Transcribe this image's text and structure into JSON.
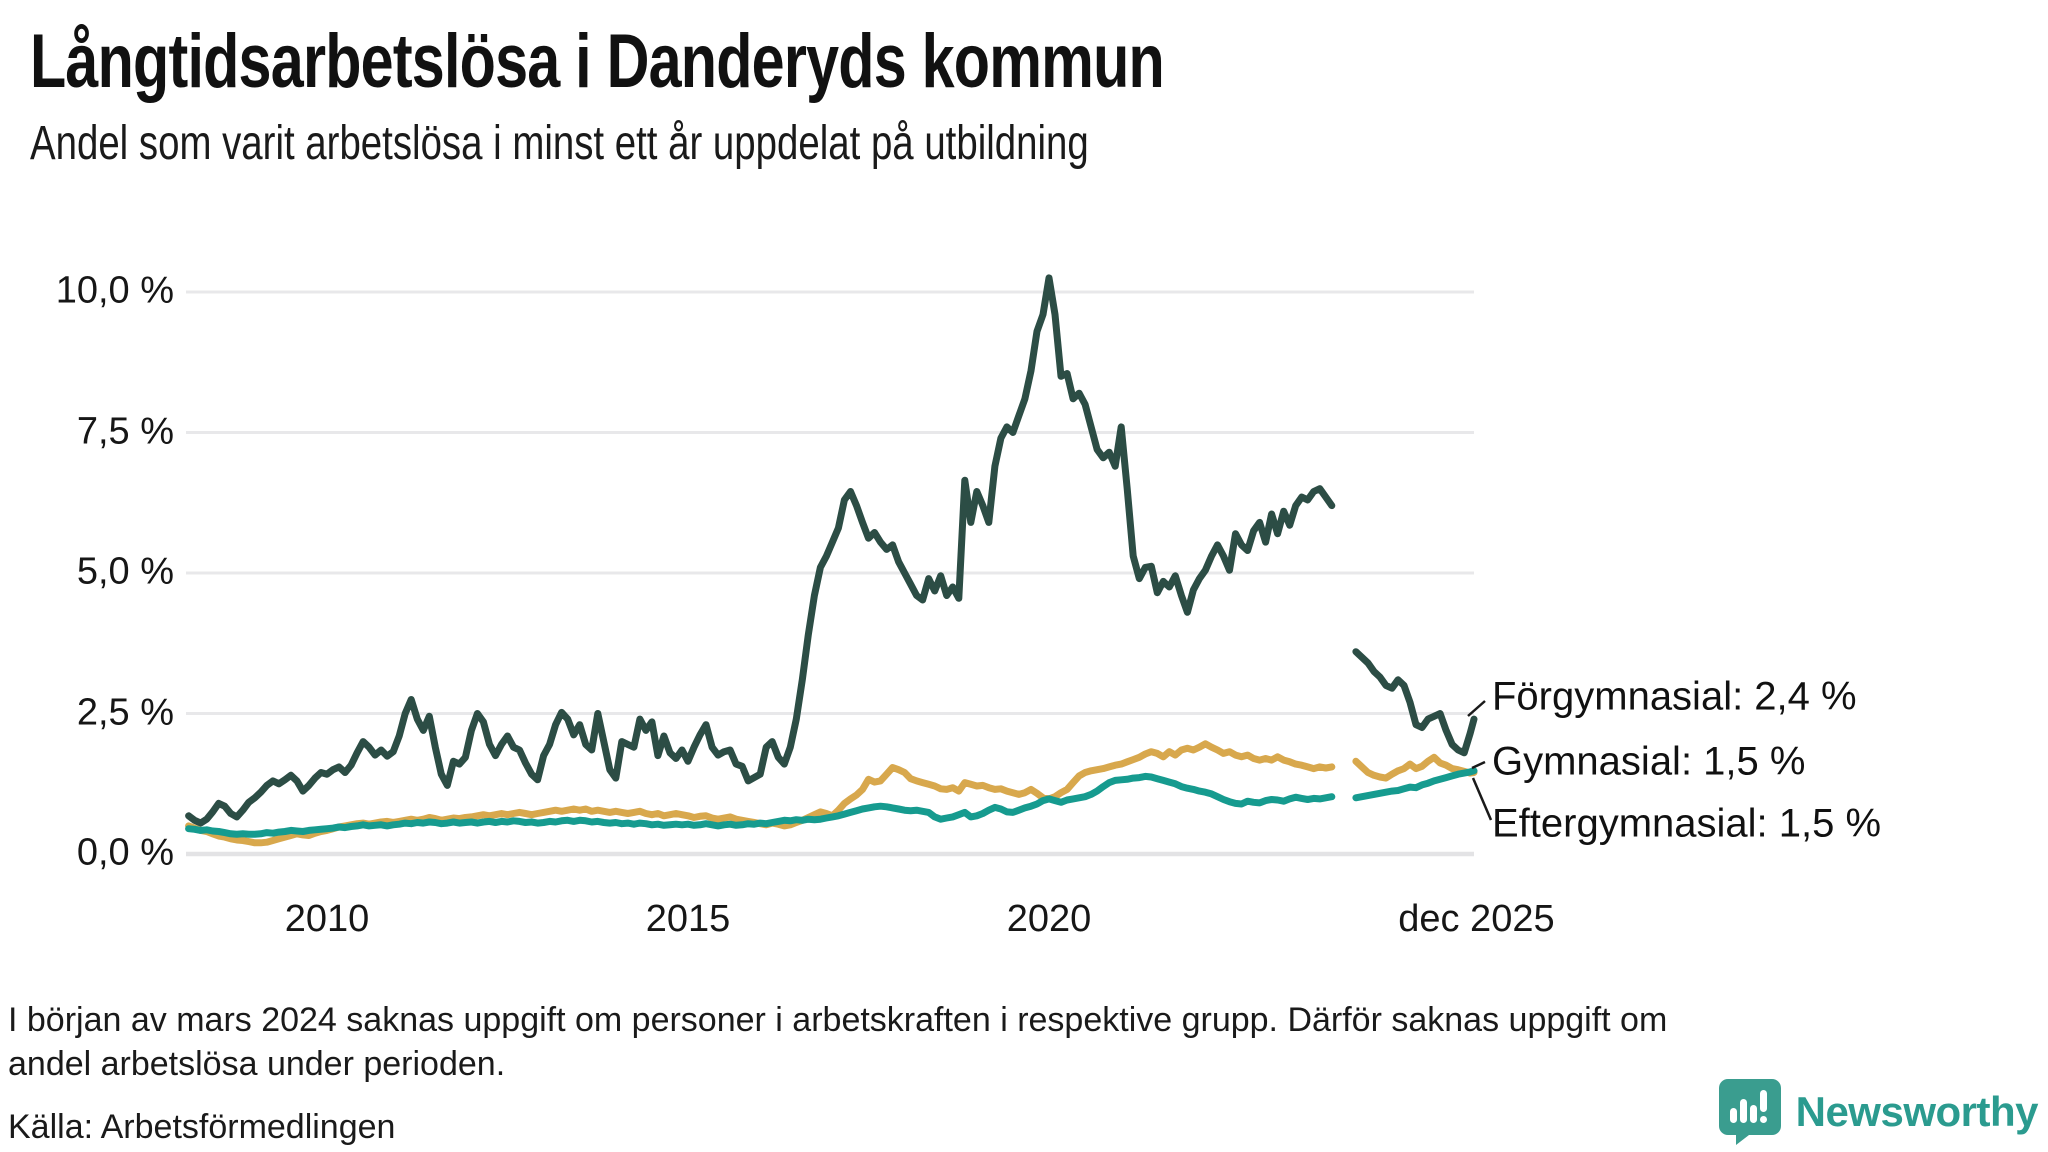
{
  "header": {
    "title": "Långtidsarbetslösa i Danderyds kommun",
    "subtitle": "Andel som varit arbetslösa i minst ett år uppdelat på utbildning"
  },
  "chart_data": {
    "type": "line",
    "title": "Långtidsarbetslösa i Danderyds kommun",
    "subtitle": "Andel som varit arbetslösa i minst ett år uppdelat på utbildning",
    "unit": "%",
    "grid": true,
    "x_axis": {
      "start_year": 2008,
      "start_month": 2,
      "freq": "monthly",
      "ticks": [
        {
          "label": "2010",
          "year": 2010
        },
        {
          "label": "2015",
          "year": 2015
        },
        {
          "label": "2020",
          "year": 2020
        },
        {
          "label": "dec 2025",
          "year": 2025.92
        }
      ]
    },
    "y_axis": {
      "min": 0,
      "max": 10,
      "tick_values": [
        10,
        7.5,
        5,
        2.5,
        0
      ],
      "tick_labels": [
        "10,0 %",
        "7,5 %",
        "5,0 %",
        "2,5 %",
        "0,0 %"
      ]
    },
    "gap": {
      "missing_months": [
        "2024-01",
        "2024-02",
        "2024-03"
      ]
    },
    "annotations": [
      "Förgymnasial: 2,4 %",
      "Gymnasial: 1,5 %",
      "Eftergymnasial: 1,5 %"
    ],
    "series": [
      {
        "name": "Förgymnasial",
        "color": "#2c4d45",
        "end_value_label": "2,4 %",
        "values": [
          0.68,
          0.6,
          0.55,
          0.62,
          0.75,
          0.9,
          0.85,
          0.72,
          0.66,
          0.78,
          0.92,
          1.0,
          1.1,
          1.22,
          1.3,
          1.25,
          1.32,
          1.4,
          1.3,
          1.12,
          1.22,
          1.35,
          1.45,
          1.42,
          1.5,
          1.55,
          1.45,
          1.58,
          1.8,
          2.0,
          1.9,
          1.76,
          1.85,
          1.74,
          1.82,
          2.1,
          2.5,
          2.75,
          2.4,
          2.2,
          2.45,
          1.9,
          1.42,
          1.22,
          1.65,
          1.6,
          1.72,
          2.2,
          2.5,
          2.35,
          1.95,
          1.75,
          1.95,
          2.1,
          1.9,
          1.85,
          1.62,
          1.42,
          1.32,
          1.75,
          1.95,
          2.3,
          2.52,
          2.4,
          2.12,
          2.3,
          1.95,
          1.85,
          2.5,
          2.0,
          1.5,
          1.35,
          2.0,
          1.95,
          1.9,
          2.4,
          2.2,
          2.35,
          1.75,
          2.1,
          1.8,
          1.7,
          1.85,
          1.65,
          1.9,
          2.12,
          2.3,
          1.9,
          1.76,
          1.82,
          1.85,
          1.6,
          1.56,
          1.3,
          1.36,
          1.42,
          1.9,
          2.0,
          1.72,
          1.6,
          1.9,
          2.4,
          3.1,
          3.9,
          4.6,
          5.1,
          5.3,
          5.55,
          5.8,
          6.3,
          6.45,
          6.2,
          5.9,
          5.62,
          5.72,
          5.55,
          5.42,
          5.5,
          5.2,
          5.0,
          4.8,
          4.6,
          4.52,
          4.9,
          4.68,
          4.95,
          4.6,
          4.75,
          4.55,
          6.65,
          5.9,
          6.45,
          6.2,
          5.9,
          6.9,
          7.4,
          7.6,
          7.5,
          7.8,
          8.1,
          8.6,
          9.3,
          9.6,
          10.25,
          9.6,
          8.5,
          8.55,
          8.1,
          8.2,
          8.0,
          7.6,
          7.2,
          7.05,
          7.15,
          6.9,
          7.6,
          6.5,
          5.3,
          4.9,
          5.1,
          5.12,
          4.65,
          4.85,
          4.75,
          4.95,
          4.6,
          4.3,
          4.7,
          4.9,
          5.05,
          5.3,
          5.5,
          5.3,
          5.05,
          5.7,
          5.5,
          5.4,
          5.75,
          5.9,
          5.55,
          6.05,
          5.7,
          6.1,
          5.85,
          6.2,
          6.35,
          6.3,
          6.45,
          6.5,
          6.35,
          6.2,
          null,
          null,
          null,
          3.6,
          3.5,
          3.4,
          3.25,
          3.15,
          3.0,
          2.95,
          3.1,
          3.0,
          2.7,
          2.3,
          2.25,
          2.4,
          2.45,
          2.5,
          2.2,
          1.95,
          1.85,
          1.8,
          2.15,
          2.4
        ]
      },
      {
        "name": "Gymnasial",
        "color": "#d8a84d",
        "end_value_label": "1,5 %",
        "values": [
          0.5,
          0.46,
          0.42,
          0.4,
          0.36,
          0.32,
          0.3,
          0.27,
          0.25,
          0.24,
          0.22,
          0.2,
          0.2,
          0.21,
          0.24,
          0.27,
          0.3,
          0.33,
          0.36,
          0.34,
          0.33,
          0.37,
          0.4,
          0.42,
          0.45,
          0.48,
          0.5,
          0.52,
          0.54,
          0.55,
          0.53,
          0.55,
          0.57,
          0.58,
          0.56,
          0.58,
          0.6,
          0.62,
          0.6,
          0.62,
          0.65,
          0.63,
          0.6,
          0.62,
          0.64,
          0.63,
          0.65,
          0.66,
          0.68,
          0.7,
          0.68,
          0.7,
          0.72,
          0.7,
          0.72,
          0.74,
          0.72,
          0.7,
          0.72,
          0.74,
          0.76,
          0.78,
          0.76,
          0.78,
          0.8,
          0.78,
          0.8,
          0.76,
          0.78,
          0.76,
          0.74,
          0.76,
          0.74,
          0.72,
          0.74,
          0.76,
          0.72,
          0.7,
          0.72,
          0.68,
          0.7,
          0.72,
          0.7,
          0.68,
          0.65,
          0.67,
          0.68,
          0.64,
          0.62,
          0.64,
          0.66,
          0.62,
          0.6,
          0.58,
          0.56,
          0.54,
          0.52,
          0.55,
          0.53,
          0.5,
          0.52,
          0.56,
          0.6,
          0.65,
          0.7,
          0.75,
          0.72,
          0.68,
          0.78,
          0.9,
          0.98,
          1.05,
          1.15,
          1.33,
          1.28,
          1.3,
          1.42,
          1.54,
          1.5,
          1.45,
          1.34,
          1.3,
          1.27,
          1.24,
          1.21,
          1.16,
          1.15,
          1.18,
          1.12,
          1.27,
          1.24,
          1.21,
          1.22,
          1.18,
          1.15,
          1.16,
          1.12,
          1.09,
          1.06,
          1.09,
          1.15,
          1.08,
          1.0,
          0.98,
          1.02,
          1.09,
          1.15,
          1.27,
          1.39,
          1.45,
          1.48,
          1.5,
          1.52,
          1.55,
          1.58,
          1.6,
          1.64,
          1.68,
          1.72,
          1.78,
          1.82,
          1.79,
          1.73,
          1.82,
          1.76,
          1.85,
          1.88,
          1.85,
          1.9,
          1.96,
          1.9,
          1.85,
          1.79,
          1.82,
          1.76,
          1.73,
          1.76,
          1.7,
          1.67,
          1.7,
          1.67,
          1.73,
          1.67,
          1.64,
          1.6,
          1.58,
          1.55,
          1.52,
          1.55,
          1.53,
          1.55,
          null,
          null,
          null,
          1.65,
          1.55,
          1.45,
          1.4,
          1.37,
          1.35,
          1.42,
          1.48,
          1.52,
          1.6,
          1.52,
          1.56,
          1.65,
          1.72,
          1.62,
          1.58,
          1.52,
          1.5,
          1.47,
          1.44,
          1.45
        ]
      },
      {
        "name": "Eftergymnasial",
        "color": "#169b8f",
        "end_value_label": "1,5 %",
        "values": [
          0.45,
          0.44,
          0.42,
          0.43,
          0.41,
          0.4,
          0.38,
          0.36,
          0.35,
          0.36,
          0.35,
          0.35,
          0.36,
          0.38,
          0.37,
          0.39,
          0.4,
          0.42,
          0.41,
          0.4,
          0.42,
          0.43,
          0.44,
          0.45,
          0.46,
          0.48,
          0.47,
          0.49,
          0.5,
          0.52,
          0.5,
          0.51,
          0.52,
          0.5,
          0.52,
          0.53,
          0.55,
          0.54,
          0.56,
          0.55,
          0.57,
          0.56,
          0.54,
          0.55,
          0.57,
          0.55,
          0.56,
          0.57,
          0.55,
          0.57,
          0.58,
          0.56,
          0.58,
          0.57,
          0.59,
          0.58,
          0.56,
          0.57,
          0.55,
          0.56,
          0.58,
          0.57,
          0.59,
          0.6,
          0.58,
          0.6,
          0.59,
          0.57,
          0.58,
          0.56,
          0.55,
          0.56,
          0.54,
          0.55,
          0.53,
          0.55,
          0.54,
          0.52,
          0.53,
          0.51,
          0.52,
          0.53,
          0.52,
          0.53,
          0.51,
          0.52,
          0.54,
          0.52,
          0.5,
          0.52,
          0.53,
          0.51,
          0.52,
          0.54,
          0.53,
          0.55,
          0.54,
          0.56,
          0.58,
          0.6,
          0.59,
          0.61,
          0.6,
          0.62,
          0.61,
          0.62,
          0.64,
          0.66,
          0.68,
          0.71,
          0.74,
          0.77,
          0.8,
          0.82,
          0.84,
          0.85,
          0.84,
          0.82,
          0.8,
          0.78,
          0.77,
          0.78,
          0.76,
          0.74,
          0.66,
          0.62,
          0.64,
          0.66,
          0.7,
          0.74,
          0.66,
          0.68,
          0.72,
          0.78,
          0.83,
          0.8,
          0.75,
          0.74,
          0.78,
          0.82,
          0.85,
          0.89,
          0.95,
          0.98,
          0.95,
          0.92,
          0.96,
          0.98,
          1.0,
          1.02,
          1.06,
          1.12,
          1.2,
          1.27,
          1.31,
          1.32,
          1.33,
          1.35,
          1.36,
          1.38,
          1.37,
          1.34,
          1.31,
          1.28,
          1.25,
          1.2,
          1.17,
          1.15,
          1.12,
          1.1,
          1.07,
          1.02,
          0.97,
          0.93,
          0.9,
          0.89,
          0.94,
          0.92,
          0.91,
          0.95,
          0.97,
          0.96,
          0.94,
          0.98,
          1.01,
          0.99,
          0.97,
          0.99,
          0.98,
          1.0,
          1.02,
          null,
          null,
          null,
          1.0,
          1.02,
          1.04,
          1.06,
          1.08,
          1.1,
          1.12,
          1.13,
          1.16,
          1.19,
          1.18,
          1.23,
          1.26,
          1.3,
          1.33,
          1.36,
          1.39,
          1.42,
          1.44,
          1.46,
          1.48
        ]
      }
    ]
  },
  "footnote": {
    "line1": "I början av mars 2024 saknas uppgift om personer i arbetskraften i respektive grupp. Därför saknas uppgift om",
    "line2": "andel arbetslösa under perioden."
  },
  "source": "Källa: Arbetsförmedlingen",
  "logo": {
    "text": "Newsworthy",
    "color": "#2b9b8f",
    "icon": "newsworthy-bubble-chart-icon"
  }
}
